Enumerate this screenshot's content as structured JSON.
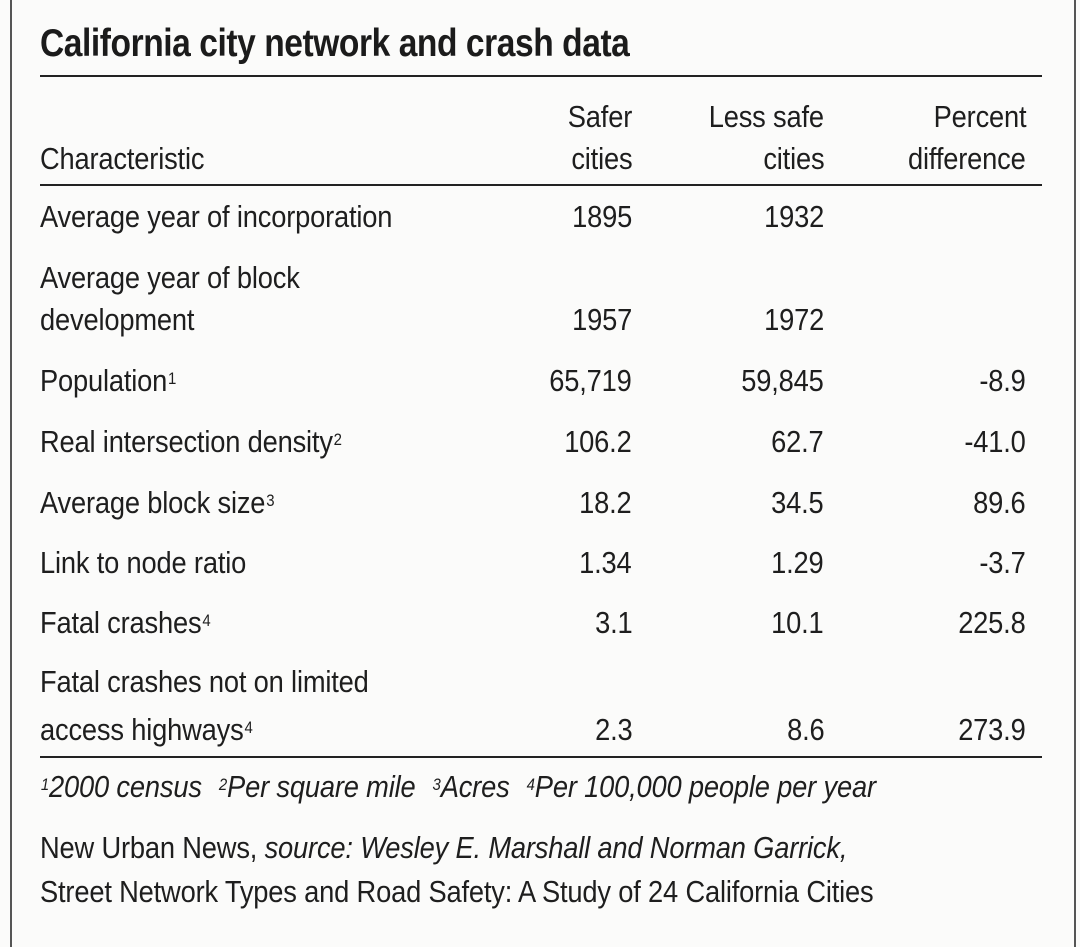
{
  "title": "California city network and crash data",
  "columns": {
    "characteristic": "Characteristic",
    "safer_line1": "Safer",
    "safer_line2": "cities",
    "less_safe_line1": "Less safe",
    "less_safe_line2": "cities",
    "percent_line1": "Percent",
    "percent_line2": "difference"
  },
  "rows": [
    {
      "label": "Average year of incorporation",
      "sup": "",
      "safer": "1895",
      "less_safe": "1932",
      "pct": ""
    },
    {
      "label_line1": "Average year of block",
      "label": "development",
      "sup": "",
      "safer": "1957",
      "less_safe": "1972",
      "pct": ""
    },
    {
      "label": "Population",
      "sup": "1",
      "safer": "65,719",
      "less_safe": "59,845",
      "pct": "-8.9"
    },
    {
      "label": "Real intersection density",
      "sup": "2",
      "safer": "106.2",
      "less_safe": "62.7",
      "pct": "-41.0"
    },
    {
      "label": "Average block size",
      "sup": "3",
      "safer": "18.2",
      "less_safe": "34.5",
      "pct": "89.6"
    },
    {
      "label": "Link to node ratio",
      "sup": "",
      "safer": "1.34",
      "less_safe": "1.29",
      "pct": "-3.7"
    },
    {
      "label": "Fatal crashes",
      "sup": "4",
      "safer": "3.1",
      "less_safe": "10.1",
      "pct": "225.8"
    },
    {
      "label_line1": "Fatal crashes not on limited",
      "label": "access highways",
      "sup": "4",
      "safer": "2.3",
      "less_safe": "8.6",
      "pct": "273.9"
    }
  ],
  "footnotes": [
    {
      "num": "1",
      "text": "2000 census"
    },
    {
      "num": "2",
      "text": "Per square mile"
    },
    {
      "num": "3",
      "text": "Acres"
    },
    {
      "num": "4",
      "text": "Per 100,000 people per year"
    }
  ],
  "credit": {
    "publisher": "New Urban News, ",
    "source_italic": "source: Wesley E. Marshall and Norman Garrick,",
    "line2": "Street Network Types and Road Safety: A Study of 24 California Cities"
  }
}
